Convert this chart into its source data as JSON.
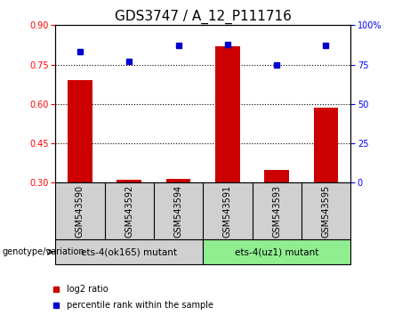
{
  "title": "GDS3747 / A_12_P111716",
  "categories": [
    "GSM543590",
    "GSM543592",
    "GSM543594",
    "GSM543591",
    "GSM543593",
    "GSM543595"
  ],
  "log2_ratio": [
    0.69,
    0.31,
    0.315,
    0.82,
    0.35,
    0.585
  ],
  "percentile_rank": [
    83,
    77,
    87,
    88,
    75,
    87
  ],
  "bar_color": "#cc0000",
  "dot_color": "#0000cc",
  "ylim_left": [
    0.3,
    0.9
  ],
  "ylim_right": [
    0,
    100
  ],
  "yticks_left": [
    0.3,
    0.45,
    0.6,
    0.75,
    0.9
  ],
  "yticks_right": [
    0,
    25,
    50,
    75,
    100
  ],
  "group1_label": "ets-4(ok165) mutant",
  "group2_label": "ets-4(uz1) mutant",
  "group1_bg": "#d0d0d0",
  "group2_bg": "#90ee90",
  "tick_box_bg": "#d0d0d0",
  "genotype_label": "genotype/variation",
  "legend_bar_label": "log2 ratio",
  "legend_dot_label": "percentile rank within the sample",
  "title_fontsize": 11,
  "tick_fontsize": 7,
  "label_fontsize": 8
}
